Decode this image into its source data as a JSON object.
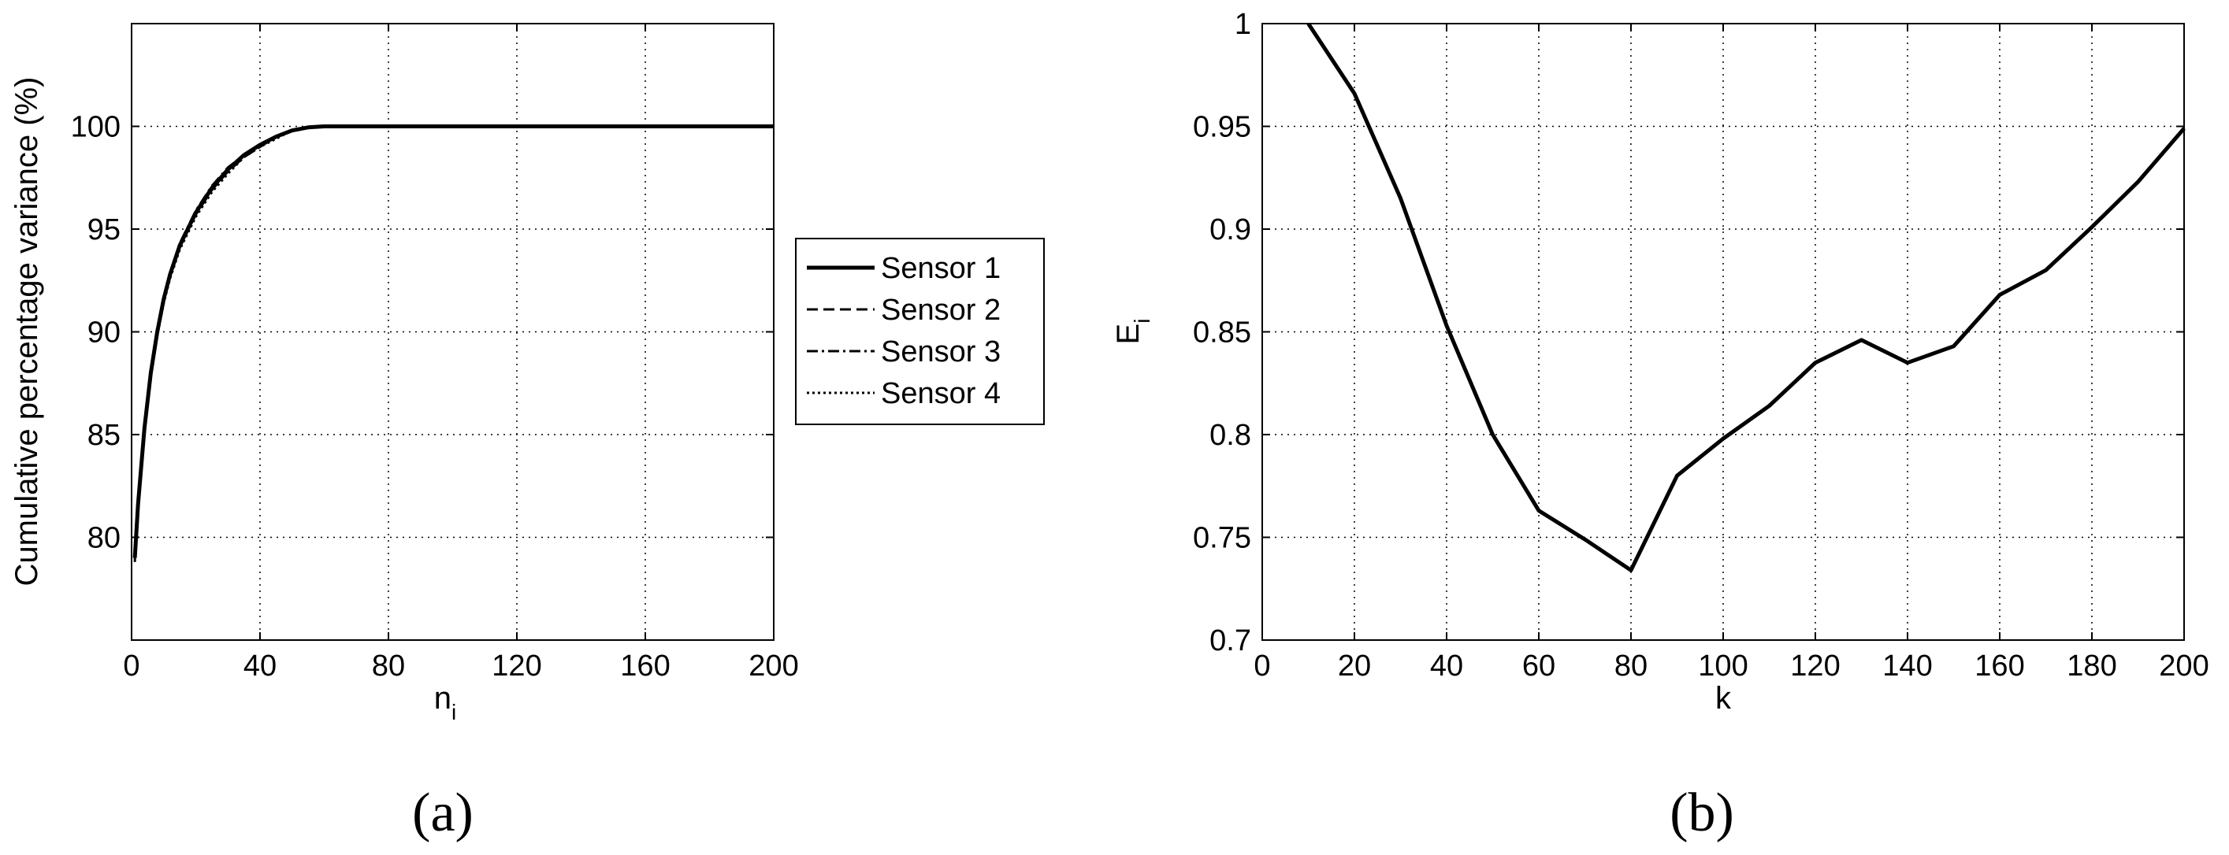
{
  "chart_data": [
    {
      "panel_label": "(a)",
      "type": "line",
      "xlabel": "n",
      "xlabel_subscript": "i",
      "ylabel": "Cumulative percentage variance (%)",
      "xlim": [
        0,
        200
      ],
      "ylim": [
        75,
        105
      ],
      "xticks": [
        "0",
        "40",
        "80",
        "120",
        "160",
        "200"
      ],
      "yticks": [
        "80",
        "85",
        "90",
        "95",
        "100"
      ],
      "grid": true,
      "legend_position": "outside-right",
      "series": [
        {
          "name": "Sensor 1",
          "style": "solid",
          "x": [
            1,
            2,
            4,
            6,
            8,
            10,
            12,
            15,
            20,
            25,
            30,
            35,
            40,
            45,
            50,
            55,
            60,
            80,
            120,
            160,
            200
          ],
          "y": [
            79.0,
            81.6,
            85.3,
            88.0,
            90.0,
            91.6,
            92.8,
            94.2,
            95.8,
            97.0,
            97.9,
            98.6,
            99.1,
            99.5,
            99.8,
            99.95,
            100,
            100,
            100,
            100,
            100
          ]
        },
        {
          "name": "Sensor 2",
          "style": "dashed",
          "x": [
            1,
            2,
            4,
            6,
            8,
            10,
            12,
            15,
            20,
            25,
            30,
            35,
            40,
            45,
            50,
            55,
            60,
            80,
            120,
            160,
            200
          ],
          "y": [
            78.9,
            81.5,
            85.2,
            87.9,
            89.9,
            91.5,
            92.7,
            94.1,
            95.7,
            96.9,
            97.8,
            98.5,
            99.0,
            99.5,
            99.8,
            99.95,
            100,
            100,
            100,
            100,
            100
          ]
        },
        {
          "name": "Sensor 3",
          "style": "dashdot",
          "x": [
            1,
            2,
            4,
            6,
            8,
            10,
            12,
            15,
            20,
            25,
            30,
            35,
            40,
            45,
            50,
            55,
            60,
            80,
            120,
            160,
            200
          ],
          "y": [
            79.1,
            81.7,
            85.4,
            88.1,
            90.1,
            91.7,
            92.9,
            94.3,
            95.9,
            97.1,
            98.0,
            98.6,
            99.1,
            99.5,
            99.8,
            99.95,
            100,
            100,
            100,
            100,
            100
          ]
        },
        {
          "name": "Sensor 4",
          "style": "dotted",
          "x": [
            1,
            2,
            4,
            6,
            8,
            10,
            12,
            15,
            20,
            25,
            30,
            35,
            40,
            45,
            50,
            55,
            60,
            80,
            120,
            160,
            200
          ],
          "y": [
            78.8,
            81.4,
            85.1,
            87.8,
            89.8,
            91.4,
            92.6,
            94.0,
            95.6,
            96.8,
            97.7,
            98.5,
            99.0,
            99.4,
            99.8,
            99.95,
            100,
            100,
            100,
            100,
            100
          ]
        }
      ]
    },
    {
      "panel_label": "(b)",
      "type": "line",
      "xlabel": "k",
      "ylabel": "E",
      "ylabel_subscript": "i",
      "xlim": [
        0,
        200
      ],
      "ylim": [
        0.7,
        1.0
      ],
      "xticks": [
        "0",
        "20",
        "40",
        "60",
        "80",
        "100",
        "120",
        "140",
        "160",
        "180",
        "200"
      ],
      "yticks": [
        "0.7",
        "0.75",
        "0.8",
        "0.85",
        "0.9",
        "0.95",
        "1"
      ],
      "grid": true,
      "series": [
        {
          "style": "solid",
          "x": [
            10,
            20,
            30,
            40,
            50,
            60,
            70,
            80,
            90,
            100,
            110,
            120,
            130,
            140,
            150,
            160,
            170,
            180,
            190,
            200
          ],
          "y": [
            1.0,
            0.966,
            0.915,
            0.853,
            0.8,
            0.763,
            0.749,
            0.734,
            0.78,
            0.798,
            0.814,
            0.835,
            0.846,
            0.835,
            0.843,
            0.868,
            0.88,
            0.901,
            0.923,
            0.949
          ]
        }
      ]
    }
  ]
}
